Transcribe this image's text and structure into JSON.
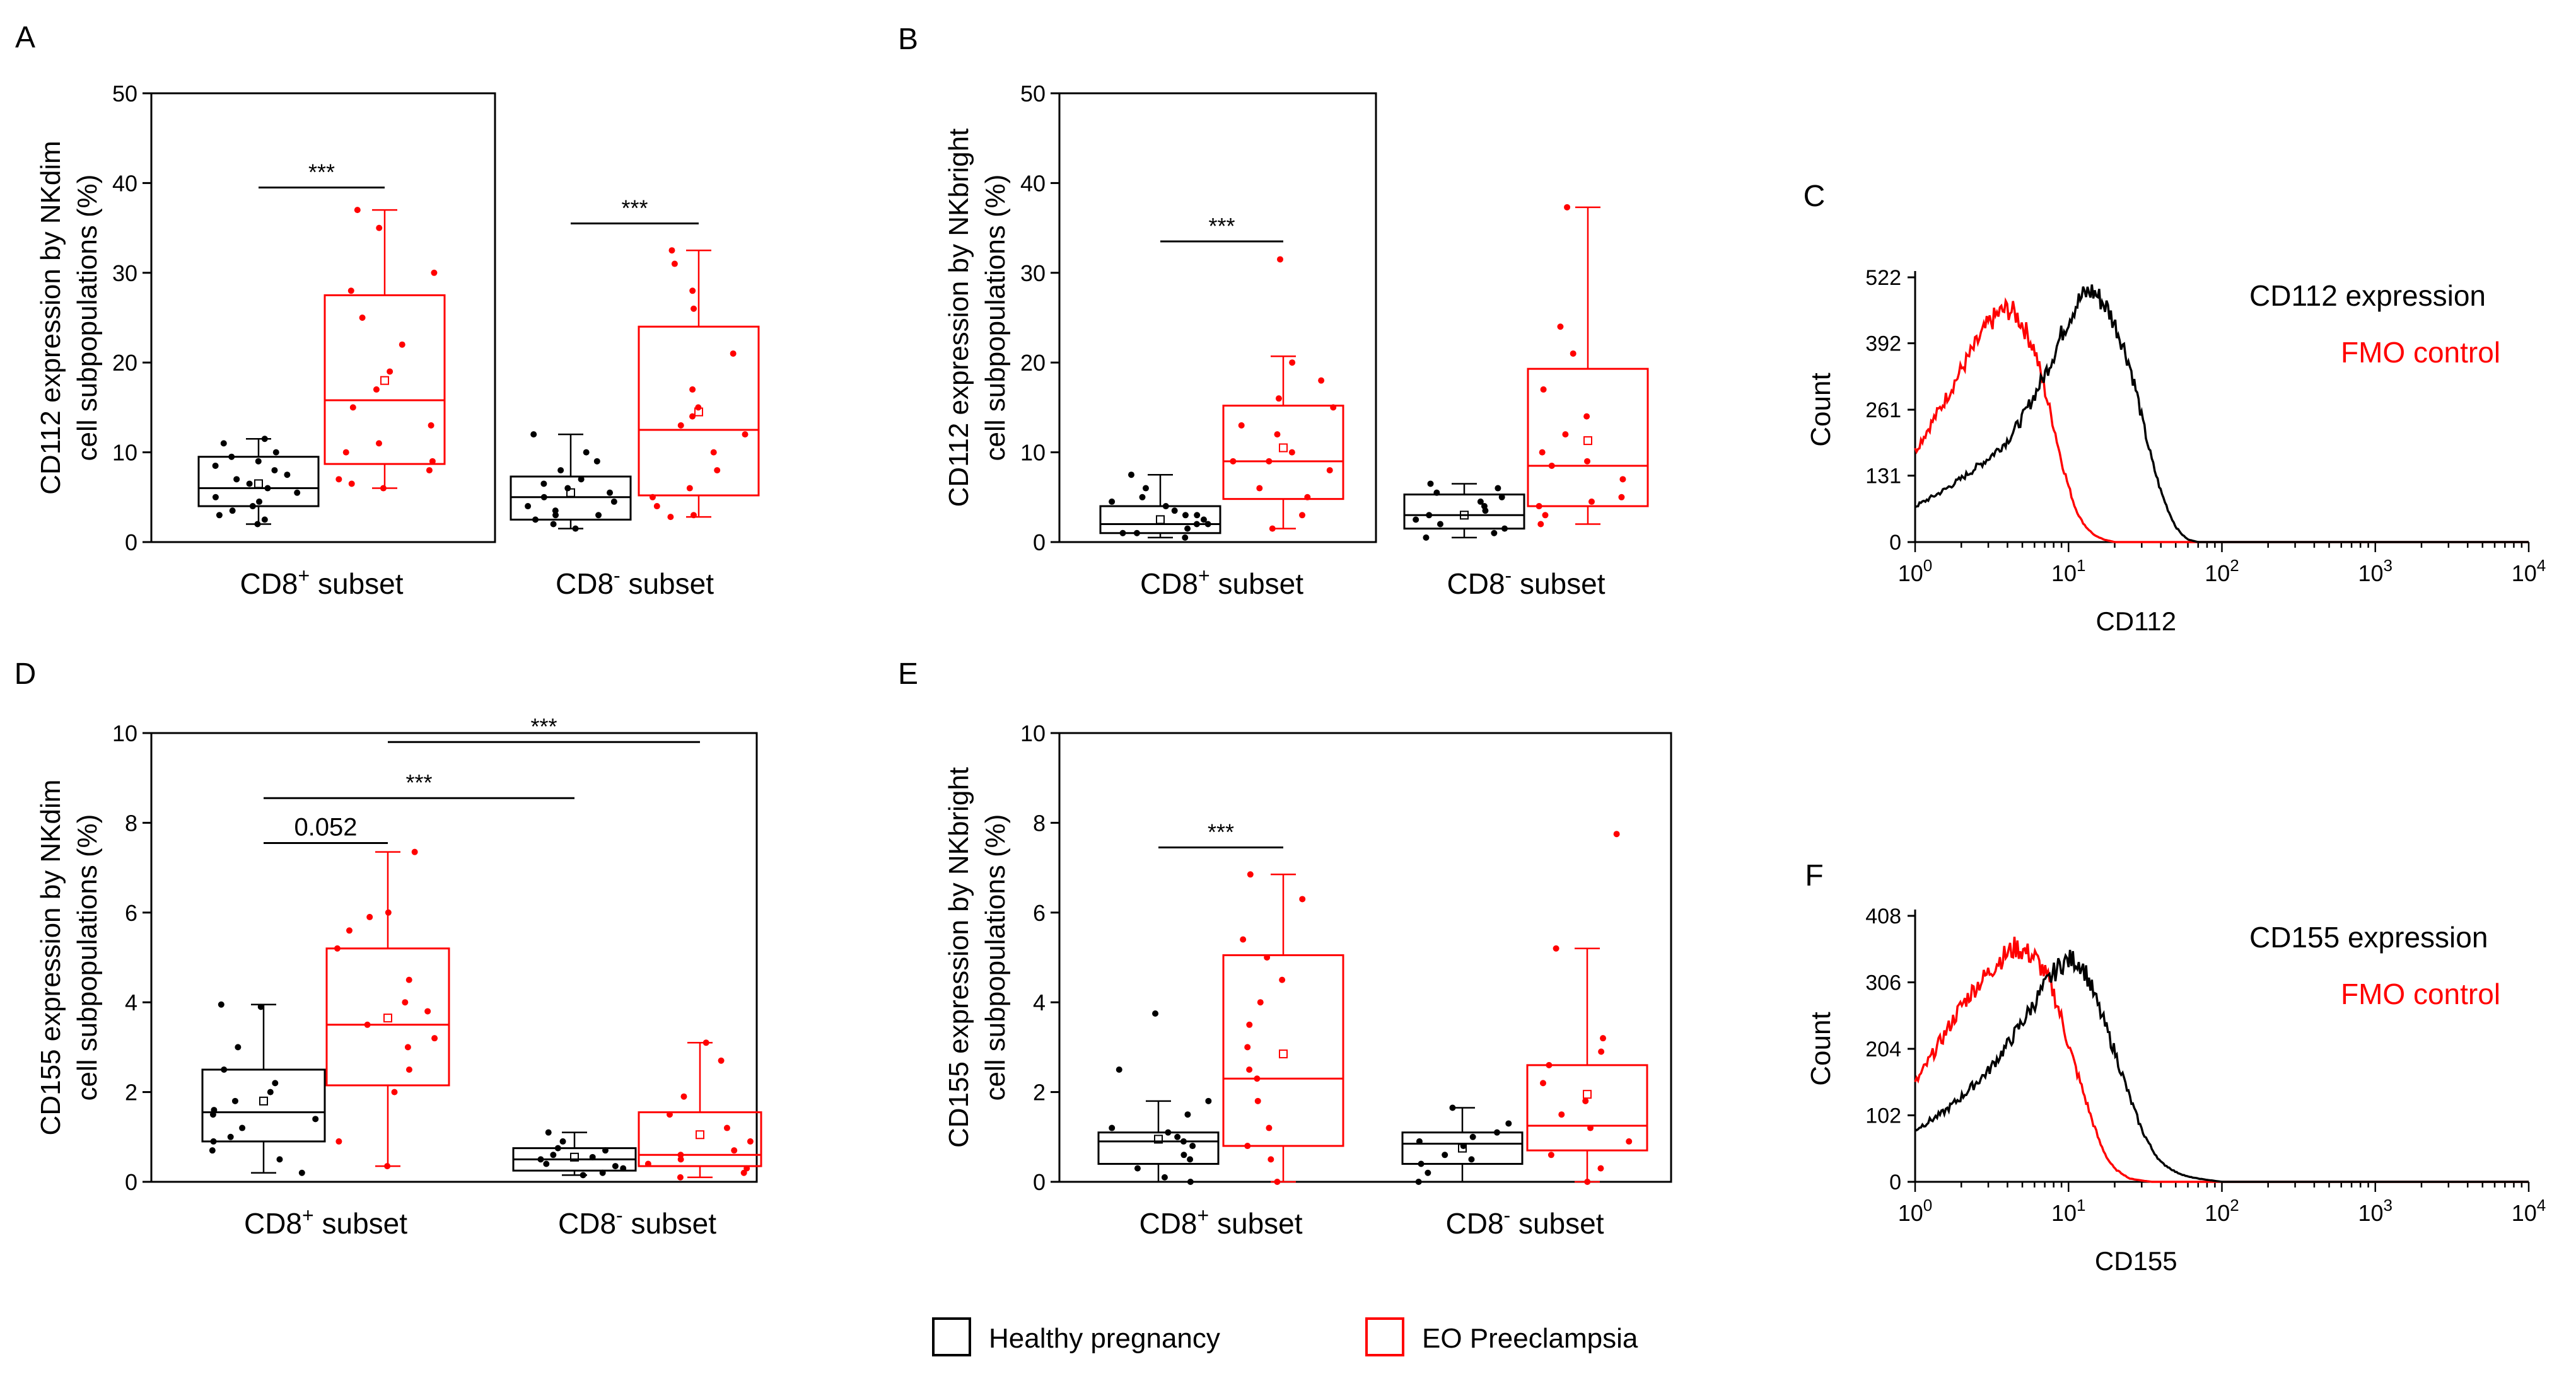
{
  "colors": {
    "healthy": "#000000",
    "eo": "#ff0000"
  },
  "legend": {
    "healthy": "Healthy pregnancy",
    "eo": "EO Preeclampsia"
  },
  "chart_data": [
    {
      "id": "A",
      "panel_label": "A",
      "type": "box",
      "ylabel_line1": "CD112 expression by NKdim",
      "ylabel_line2": "cell subpopulations (%)",
      "ylim": [
        0,
        50
      ],
      "yticks": [
        0,
        10,
        20,
        30,
        40,
        50
      ],
      "ytick_labels": [
        "0",
        "10",
        "20",
        "30",
        "40",
        "50"
      ],
      "categories": [
        {
          "main": "CD8",
          "sup": "+",
          "tail": " subset"
        },
        {
          "main": "CD8",
          "sup": "-",
          "tail": " subset"
        }
      ],
      "boxes": [
        {
          "group": 0,
          "series": "healthy",
          "whisker_low": 2,
          "q1": 4,
          "median": 6,
          "mean": 6.5,
          "q3": 9.5,
          "whisker_high": 11.5,
          "points": [
            2,
            2.5,
            3,
            3.5,
            4,
            4.5,
            5,
            5.5,
            6,
            6.5,
            7,
            7.5,
            8,
            8.5,
            9,
            9.5,
            10,
            11,
            11.5
          ]
        },
        {
          "group": 0,
          "series": "eo",
          "whisker_low": 6,
          "q1": 8.7,
          "median": 15.8,
          "mean": 18,
          "q3": 27.5,
          "whisker_high": 37,
          "points": [
            6,
            6.5,
            7,
            8,
            9,
            10,
            11,
            13,
            15,
            17,
            19,
            22,
            25,
            28,
            30,
            35,
            37
          ]
        },
        {
          "group": 1,
          "series": "healthy",
          "whisker_low": 1.5,
          "q1": 2.5,
          "median": 5,
          "mean": 5.5,
          "q3": 7.3,
          "whisker_high": 12,
          "points": [
            1.5,
            2,
            2.5,
            3,
            3,
            3.5,
            4,
            4.5,
            5,
            5.5,
            6,
            6.5,
            7,
            8,
            9,
            10,
            12
          ]
        },
        {
          "group": 1,
          "series": "eo",
          "whisker_low": 2.8,
          "q1": 5.2,
          "median": 12.5,
          "mean": 14.5,
          "q3": 24,
          "whisker_high": 32.5,
          "points": [
            2.8,
            3,
            4,
            5,
            6,
            8,
            10,
            12,
            13,
            14,
            15,
            17,
            21,
            26,
            28,
            31,
            32.5
          ]
        }
      ],
      "annotations": [
        {
          "text": "***",
          "y": 39.5,
          "from_box": 0,
          "to_box": 1
        },
        {
          "text": "***",
          "y": 35.5,
          "from_box": 2,
          "to_box": 3
        }
      ]
    },
    {
      "id": "B",
      "panel_label": "B",
      "type": "box",
      "ylabel_line1": "CD112 expression by NKbright",
      "ylabel_line2": "cell subpopulations (%)",
      "ylim": [
        0,
        50
      ],
      "yticks": [
        0,
        10,
        20,
        30,
        40,
        50
      ],
      "ytick_labels": [
        "0",
        "10",
        "20",
        "30",
        "40",
        "50"
      ],
      "categories": [
        {
          "main": "CD8",
          "sup": "+",
          "tail": " subset"
        },
        {
          "main": "CD8",
          "sup": "-",
          "tail": " subset"
        }
      ],
      "boxes": [
        {
          "group": 0,
          "series": "healthy",
          "whisker_low": 0.5,
          "q1": 1,
          "median": 2,
          "mean": 2.5,
          "q3": 4,
          "whisker_high": 7.5,
          "points": [
            0.5,
            1,
            1,
            1.5,
            2,
            2,
            2.5,
            3,
            3,
            3.5,
            4,
            4.5,
            5,
            6,
            7.5
          ]
        },
        {
          "group": 0,
          "series": "eo",
          "whisker_low": 1.5,
          "q1": 4.8,
          "median": 9,
          "mean": 10.5,
          "q3": 15.2,
          "whisker_high": 20.7,
          "points": [
            1.5,
            3,
            5,
            6,
            8,
            9,
            9,
            10,
            12,
            13,
            15,
            16,
            18,
            20,
            31.5
          ]
        },
        {
          "group": 1,
          "series": "healthy",
          "whisker_low": 0.5,
          "q1": 1.5,
          "median": 3,
          "mean": 3,
          "q3": 5.3,
          "whisker_high": 6.5,
          "points": [
            0.5,
            1,
            1.5,
            2,
            2.5,
            3,
            3.5,
            4,
            4.5,
            5,
            5.5,
            6,
            6.5
          ]
        },
        {
          "group": 1,
          "series": "eo",
          "whisker_low": 2,
          "q1": 4,
          "median": 8.5,
          "mean": 11.3,
          "q3": 19.3,
          "whisker_high": 37.3,
          "points": [
            2,
            3,
            4,
            4.5,
            5,
            7,
            8.5,
            9,
            10,
            12,
            14,
            17,
            21,
            24,
            37.3
          ]
        }
      ],
      "annotations": [
        {
          "text": "***",
          "y": 33.5,
          "from_box": 0,
          "to_box": 1
        }
      ]
    },
    {
      "id": "C",
      "panel_label": "C",
      "type": "line",
      "xlabel": "CD112",
      "ylabel": "Count",
      "xscale": "log",
      "xlim": [
        1,
        10000
      ],
      "xticks": [
        {
          "value": 1,
          "base": "10",
          "exp": "0"
        },
        {
          "value": 10,
          "base": "10",
          "exp": "1"
        },
        {
          "value": 100,
          "base": "10",
          "exp": "2"
        },
        {
          "value": 1000,
          "base": "10",
          "exp": "3"
        },
        {
          "value": 10000,
          "base": "10",
          "exp": "4"
        }
      ],
      "ylim": [
        0,
        522
      ],
      "yticks": [
        0,
        131,
        261,
        392,
        522
      ],
      "ytick_labels": [
        "0",
        "131",
        "261",
        "392",
        "522"
      ],
      "series": [
        {
          "name": "CD112 expression",
          "color": "#000000",
          "noise": 0.05,
          "x": [
            1,
            1.5,
            2,
            3,
            4,
            5,
            6,
            7,
            8,
            9,
            10,
            11,
            12,
            13,
            14,
            15,
            16,
            18,
            20,
            22,
            25,
            28,
            30,
            35,
            40,
            45,
            50,
            55,
            60,
            70,
            100,
            1000,
            10000
          ],
          "y": [
            70,
            100,
            125,
            165,
            200,
            245,
            290,
            330,
            370,
            410,
            440,
            465,
            480,
            490,
            495,
            490,
            480,
            460,
            430,
            400,
            350,
            290,
            245,
            160,
            100,
            60,
            30,
            15,
            5,
            0,
            0,
            0,
            0
          ]
        },
        {
          "name": "FMO control",
          "color": "#ff0000",
          "noise": 0.05,
          "x": [
            1,
            1.5,
            2,
            2.5,
            3,
            3.5,
            4,
            4.5,
            5,
            6,
            7,
            8,
            9,
            10,
            11,
            12,
            13,
            14,
            15,
            17,
            20,
            25,
            30,
            100,
            10000
          ],
          "y": [
            180,
            270,
            340,
            390,
            430,
            450,
            460,
            450,
            430,
            380,
            300,
            230,
            160,
            110,
            70,
            45,
            30,
            20,
            12,
            5,
            0,
            0,
            0,
            0,
            0
          ]
        }
      ]
    },
    {
      "id": "D",
      "panel_label": "D",
      "type": "box",
      "ylabel_line1": "CD155 expression by NKdim",
      "ylabel_line2": "cell subpopulations (%)",
      "ylim": [
        0,
        10
      ],
      "yticks": [
        0,
        2,
        4,
        6,
        8,
        10
      ],
      "ytick_labels": [
        "0",
        "2",
        "4",
        "6",
        "8",
        "10"
      ],
      "categories": [
        {
          "main": "CD8",
          "sup": "+",
          "tail": " subset"
        },
        {
          "main": "CD8",
          "sup": "-",
          "tail": " subset"
        }
      ],
      "boxes": [
        {
          "group": 0,
          "series": "healthy",
          "whisker_low": 0.2,
          "q1": 0.9,
          "median": 1.55,
          "mean": 1.8,
          "q3": 2.5,
          "whisker_high": 3.95,
          "points": [
            0.2,
            0.5,
            0.7,
            0.9,
            1,
            1.2,
            1.4,
            1.5,
            1.6,
            1.8,
            2,
            2.2,
            2.5,
            3,
            3.9,
            3.95
          ]
        },
        {
          "group": 0,
          "series": "eo",
          "whisker_low": 0.35,
          "q1": 2.15,
          "median": 3.5,
          "mean": 3.65,
          "q3": 5.2,
          "whisker_high": 7.35,
          "points": [
            0.35,
            0.9,
            2,
            2.5,
            3,
            3.2,
            3.5,
            3.8,
            4,
            4.5,
            5.2,
            5.6,
            5.9,
            6,
            7.35
          ]
        },
        {
          "group": 1,
          "series": "healthy",
          "whisker_low": 0.15,
          "q1": 0.25,
          "median": 0.5,
          "mean": 0.55,
          "q3": 0.75,
          "whisker_high": 1.1,
          "points": [
            0.15,
            0.2,
            0.3,
            0.35,
            0.4,
            0.5,
            0.55,
            0.6,
            0.7,
            0.75,
            0.9,
            1.1
          ]
        },
        {
          "group": 1,
          "series": "eo",
          "whisker_low": 0.1,
          "q1": 0.35,
          "median": 0.6,
          "mean": 1.05,
          "q3": 1.55,
          "whisker_high": 3.1,
          "points": [
            0.1,
            0.2,
            0.3,
            0.4,
            0.5,
            0.6,
            0.7,
            0.9,
            1.2,
            1.5,
            1.9,
            2.7,
            3.1
          ]
        }
      ],
      "annotations": [
        {
          "text": "0.052",
          "y": 7.55,
          "from_box": 0,
          "to_box": 1
        },
        {
          "text": "***",
          "y": 8.55,
          "from_box": 0,
          "to_box": 2
        },
        {
          "text": "***",
          "y": 9.8,
          "from_box": 1,
          "to_box": 3
        }
      ]
    },
    {
      "id": "E",
      "panel_label": "E",
      "type": "box",
      "ylabel_line1": "CD155 expression by NKbright",
      "ylabel_line2": "cell subpopulations (%)",
      "ylim": [
        0,
        10
      ],
      "yticks": [
        0,
        2,
        4,
        6,
        8,
        10
      ],
      "ytick_labels": [
        "0",
        "2",
        "4",
        "6",
        "8",
        "10"
      ],
      "categories": [
        {
          "main": "CD8",
          "sup": "+",
          "tail": " subset"
        },
        {
          "main": "CD8",
          "sup": "-",
          "tail": " subset"
        }
      ],
      "boxes": [
        {
          "group": 0,
          "series": "healthy",
          "whisker_low": 0,
          "q1": 0.4,
          "median": 0.9,
          "mean": 0.95,
          "q3": 1.1,
          "whisker_high": 1.8,
          "points": [
            0,
            0.1,
            0.3,
            0.5,
            0.6,
            0.8,
            0.9,
            1,
            1.1,
            1.2,
            1.5,
            1.8,
            2.5,
            3.75
          ]
        },
        {
          "group": 0,
          "series": "eo",
          "whisker_low": 0,
          "q1": 0.8,
          "median": 2.3,
          "mean": 2.85,
          "q3": 5.05,
          "whisker_high": 6.85,
          "points": [
            0,
            0.5,
            0.8,
            1.2,
            1.8,
            2.3,
            2.5,
            3,
            3.5,
            4,
            4.5,
            5,
            5.4,
            6.3,
            6.85
          ]
        },
        {
          "group": 1,
          "series": "healthy",
          "whisker_low": 0,
          "q1": 0.4,
          "median": 0.85,
          "mean": 0.75,
          "q3": 1.1,
          "whisker_high": 1.65,
          "points": [
            0,
            0.2,
            0.4,
            0.5,
            0.6,
            0.8,
            0.9,
            1,
            1.1,
            1.3,
            1.65
          ]
        },
        {
          "group": 1,
          "series": "eo",
          "whisker_low": 0,
          "q1": 0.7,
          "median": 1.25,
          "mean": 1.95,
          "q3": 2.6,
          "whisker_high": 5.2,
          "points": [
            0,
            0.3,
            0.6,
            0.9,
            1.2,
            1.5,
            1.8,
            2.2,
            2.6,
            2.9,
            3.2,
            5.2,
            7.75
          ]
        }
      ],
      "annotations": [
        {
          "text": "***",
          "y": 7.45,
          "from_box": 0,
          "to_box": 1
        }
      ]
    },
    {
      "id": "F",
      "panel_label": "F",
      "type": "line",
      "xlabel": "CD155",
      "ylabel": "Count",
      "xscale": "log",
      "xlim": [
        1,
        10000
      ],
      "xticks": [
        {
          "value": 1,
          "base": "10",
          "exp": "0"
        },
        {
          "value": 10,
          "base": "10",
          "exp": "1"
        },
        {
          "value": 100,
          "base": "10",
          "exp": "2"
        },
        {
          "value": 1000,
          "base": "10",
          "exp": "3"
        },
        {
          "value": 10000,
          "base": "10",
          "exp": "4"
        }
      ],
      "ylim": [
        0,
        408
      ],
      "yticks": [
        0,
        102,
        204,
        306,
        408
      ],
      "ytick_labels": [
        "0",
        "102",
        "204",
        "306",
        "408"
      ],
      "series": [
        {
          "name": "CD155 expression",
          "color": "#000000",
          "noise": 0.05,
          "x": [
            1,
            1.5,
            2,
            3,
            4,
            5,
            6,
            7,
            8,
            9,
            10,
            11,
            12,
            13,
            14,
            15,
            17,
            20,
            25,
            30,
            35,
            40,
            50,
            60,
            70,
            80,
            100,
            1000,
            10000
          ],
          "y": [
            80,
            105,
            130,
            170,
            210,
            245,
            275,
            300,
            320,
            335,
            340,
            340,
            335,
            320,
            300,
            280,
            245,
            200,
            130,
            80,
            50,
            30,
            15,
            8,
            5,
            3,
            0,
            0,
            0
          ]
        },
        {
          "name": "FMO control",
          "color": "#ff0000",
          "noise": 0.05,
          "x": [
            1,
            1.5,
            2,
            2.5,
            3,
            3.5,
            4,
            4.5,
            5,
            6,
            7,
            8,
            9,
            10,
            12,
            14,
            16,
            18,
            20,
            25,
            30,
            35,
            100,
            10000
          ],
          "y": [
            150,
            220,
            270,
            300,
            320,
            340,
            350,
            360,
            355,
            345,
            320,
            290,
            250,
            210,
            150,
            100,
            60,
            35,
            20,
            5,
            2,
            0,
            0,
            0
          ]
        }
      ]
    }
  ]
}
